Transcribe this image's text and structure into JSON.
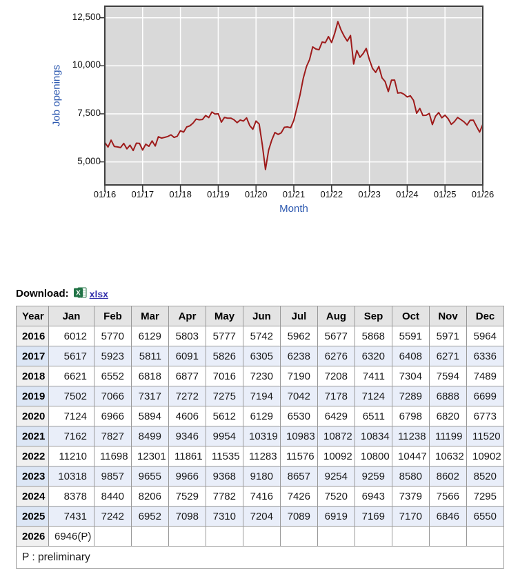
{
  "colors": {
    "plot_bg": "#d9d9d9",
    "gridline": "#ffffff",
    "line": "#9e1b1b",
    "plot_border": "#3f3f3f",
    "tick": "#333333",
    "axis_title_blue": "#2d59b0",
    "link_blue": "#3634ad",
    "stripe_blue": "#e9eef9"
  },
  "chart": {
    "y_axis_label": "Job openings",
    "x_axis_label": "Month",
    "y_ticks": [
      {
        "label": "12,500",
        "value": 12500
      },
      {
        "label": "10,000",
        "value": 10000
      },
      {
        "label": "7,500",
        "value": 7500
      },
      {
        "label": "5,000",
        "value": 5000
      }
    ],
    "x_ticks": [
      "01/16",
      "01/17",
      "01/18",
      "01/19",
      "01/20",
      "01/21",
      "01/22",
      "01/23",
      "01/24",
      "01/25",
      "01/26"
    ]
  },
  "chart_data": {
    "type": "line",
    "title": "",
    "xlabel": "Month",
    "ylabel": "Job openings",
    "x_start": "2016-01",
    "x_end": "2026-01",
    "interval": "monthly",
    "x_tick_labels": [
      "01/16",
      "01/17",
      "01/18",
      "01/19",
      "01/20",
      "01/21",
      "01/22",
      "01/23",
      "01/24",
      "01/25",
      "01/26"
    ],
    "ylim": [
      3800,
      13100
    ],
    "grid": true,
    "legend": "none",
    "series": [
      {
        "name": "Job openings",
        "values": [
          6012,
          5770,
          6129,
          5803,
          5777,
          5742,
          5962,
          5677,
          5868,
          5591,
          5971,
          5964,
          5617,
          5923,
          5811,
          6091,
          5826,
          6305,
          6238,
          6276,
          6320,
          6408,
          6271,
          6336,
          6621,
          6552,
          6818,
          6877,
          7016,
          7230,
          7190,
          7208,
          7411,
          7304,
          7594,
          7489,
          7502,
          7066,
          7317,
          7272,
          7275,
          7194,
          7042,
          7178,
          7124,
          7289,
          6888,
          6699,
          7124,
          6966,
          5894,
          4606,
          5612,
          6129,
          6530,
          6429,
          6511,
          6798,
          6820,
          6773,
          7162,
          7827,
          8499,
          9346,
          9954,
          10319,
          10983,
          10872,
          10834,
          11238,
          11199,
          11520,
          11210,
          11698,
          12301,
          11861,
          11535,
          11283,
          11576,
          10092,
          10800,
          10447,
          10632,
          10902,
          10318,
          9857,
          9655,
          9966,
          9368,
          9180,
          8657,
          9254,
          9259,
          8580,
          8602,
          8520,
          8378,
          8440,
          8206,
          7529,
          7782,
          7416,
          7426,
          7520,
          6943,
          7379,
          7566,
          7295,
          7431,
          7242,
          6952,
          7098,
          7310,
          7204,
          7089,
          6919,
          7169,
          7170,
          6846,
          6550,
          6946
        ]
      }
    ]
  },
  "download": {
    "label": "Download:",
    "link_text": "xlsx",
    "icon": "excel-file-icon"
  },
  "table": {
    "columns": [
      "Year",
      "Jan",
      "Feb",
      "Mar",
      "Apr",
      "May",
      "Jun",
      "Jul",
      "Aug",
      "Sep",
      "Oct",
      "Nov",
      "Dec"
    ],
    "rows": [
      {
        "year": "2016",
        "values": [
          "6012",
          "5770",
          "6129",
          "5803",
          "5777",
          "5742",
          "5962",
          "5677",
          "5868",
          "5591",
          "5971",
          "5964"
        ]
      },
      {
        "year": "2017",
        "values": [
          "5617",
          "5923",
          "5811",
          "6091",
          "5826",
          "6305",
          "6238",
          "6276",
          "6320",
          "6408",
          "6271",
          "6336"
        ]
      },
      {
        "year": "2018",
        "values": [
          "6621",
          "6552",
          "6818",
          "6877",
          "7016",
          "7230",
          "7190",
          "7208",
          "7411",
          "7304",
          "7594",
          "7489"
        ]
      },
      {
        "year": "2019",
        "values": [
          "7502",
          "7066",
          "7317",
          "7272",
          "7275",
          "7194",
          "7042",
          "7178",
          "7124",
          "7289",
          "6888",
          "6699"
        ]
      },
      {
        "year": "2020",
        "values": [
          "7124",
          "6966",
          "5894",
          "4606",
          "5612",
          "6129",
          "6530",
          "6429",
          "6511",
          "6798",
          "6820",
          "6773"
        ]
      },
      {
        "year": "2021",
        "values": [
          "7162",
          "7827",
          "8499",
          "9346",
          "9954",
          "10319",
          "10983",
          "10872",
          "10834",
          "11238",
          "11199",
          "11520"
        ]
      },
      {
        "year": "2022",
        "values": [
          "11210",
          "11698",
          "12301",
          "11861",
          "11535",
          "11283",
          "11576",
          "10092",
          "10800",
          "10447",
          "10632",
          "10902"
        ]
      },
      {
        "year": "2023",
        "values": [
          "10318",
          "9857",
          "9655",
          "9966",
          "9368",
          "9180",
          "8657",
          "9254",
          "9259",
          "8580",
          "8602",
          "8520"
        ]
      },
      {
        "year": "2024",
        "values": [
          "8378",
          "8440",
          "8206",
          "7529",
          "7782",
          "7416",
          "7426",
          "7520",
          "6943",
          "7379",
          "7566",
          "7295"
        ]
      },
      {
        "year": "2025",
        "values": [
          "7431",
          "7242",
          "6952",
          "7098",
          "7310",
          "7204",
          "7089",
          "6919",
          "7169",
          "7170",
          "6846",
          "6550"
        ]
      },
      {
        "year": "2026",
        "values": [
          "6946(P)",
          "",
          "",
          "",
          "",
          "",
          "",
          "",
          "",
          "",
          "",
          ""
        ]
      }
    ],
    "footnote": "P : preliminary"
  }
}
